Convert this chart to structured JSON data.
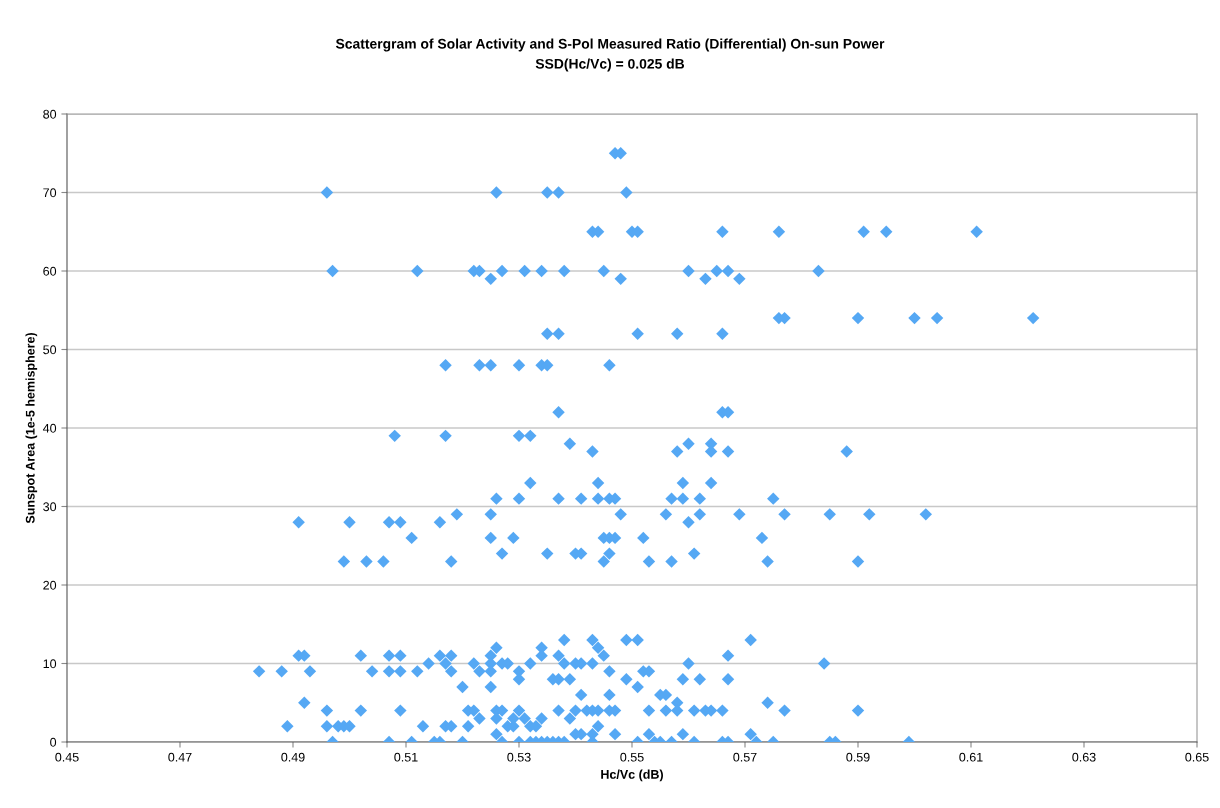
{
  "chart_data": {
    "type": "scatter",
    "title": "Scattergram of Solar Activity and S-Pol Measured Ratio (Differential) On-sun Power",
    "subtitle": "SSD(Hc/Vc) = 0.025 dB",
    "xlabel": "Hc/Vc (dB)",
    "ylabel": "Sunspot Area (1e-5 hemisphere)",
    "xlim": [
      0.45,
      0.65
    ],
    "xticks": [
      0.45,
      0.47,
      0.49,
      0.51,
      0.53,
      0.55,
      0.57,
      0.59,
      0.61,
      0.63,
      0.65
    ],
    "ylim": [
      0,
      80
    ],
    "yticks": [
      0,
      10,
      20,
      30,
      40,
      50,
      60,
      70,
      80
    ],
    "grid": "y",
    "marker": "diamond",
    "series": [
      {
        "color": "#55a8f4",
        "x": [
          0.547,
          0.548,
          0.496,
          0.526,
          0.535,
          0.537,
          0.549,
          0.543,
          0.544,
          0.55,
          0.551,
          0.566,
          0.576,
          0.591,
          0.595,
          0.611,
          0.497,
          0.512,
          0.522,
          0.523,
          0.527,
          0.531,
          0.534,
          0.538,
          0.545,
          0.56,
          0.565,
          0.567,
          0.583,
          0.525,
          0.548,
          0.563,
          0.569,
          0.576,
          0.577,
          0.59,
          0.6,
          0.604,
          0.621,
          0.535,
          0.537,
          0.551,
          0.558,
          0.566,
          0.517,
          0.523,
          0.525,
          0.53,
          0.534,
          0.535,
          0.546,
          0.537,
          0.566,
          0.567,
          0.508,
          0.517,
          0.53,
          0.532,
          0.539,
          0.56,
          0.564,
          0.543,
          0.558,
          0.564,
          0.567,
          0.588,
          0.532,
          0.544,
          0.559,
          0.564,
          0.526,
          0.53,
          0.537,
          0.541,
          0.544,
          0.546,
          0.547,
          0.557,
          0.559,
          0.562,
          0.575,
          0.519,
          0.525,
          0.548,
          0.556,
          0.562,
          0.569,
          0.577,
          0.585,
          0.592,
          0.602,
          0.491,
          0.5,
          0.507,
          0.509,
          0.516,
          0.56,
          0.511,
          0.525,
          0.529,
          0.545,
          0.546,
          0.547,
          0.552,
          0.573,
          0.527,
          0.535,
          0.54,
          0.541,
          0.546,
          0.561,
          0.499,
          0.503,
          0.506,
          0.518,
          0.545,
          0.553,
          0.557,
          0.574,
          0.59,
          0.538,
          0.543,
          0.549,
          0.551,
          0.571,
          0.526,
          0.534,
          0.544,
          0.491,
          0.492,
          0.502,
          0.507,
          0.509,
          0.516,
          0.518,
          0.525,
          0.534,
          0.537,
          0.545,
          0.567,
          0.514,
          0.517,
          0.522,
          0.525,
          0.527,
          0.528,
          0.532,
          0.538,
          0.54,
          0.541,
          0.543,
          0.56,
          0.584,
          0.484,
          0.488,
          0.493,
          0.504,
          0.507,
          0.509,
          0.512,
          0.518,
          0.523,
          0.525,
          0.53,
          0.546,
          0.552,
          0.553,
          0.53,
          0.536,
          0.537,
          0.539,
          0.549,
          0.559,
          0.562,
          0.567,
          0.52,
          0.525,
          0.551,
          0.541,
          0.546,
          0.555,
          0.556,
          0.492,
          0.558,
          0.574,
          0.496,
          0.502,
          0.509,
          0.521,
          0.522,
          0.526,
          0.527,
          0.53,
          0.537,
          0.54,
          0.542,
          0.543,
          0.544,
          0.546,
          0.547,
          0.553,
          0.556,
          0.558,
          0.561,
          0.563,
          0.564,
          0.566,
          0.577,
          0.59,
          0.523,
          0.526,
          0.529,
          0.531,
          0.534,
          0.539,
          0.489,
          0.496,
          0.498,
          0.499,
          0.5,
          0.513,
          0.517,
          0.518,
          0.521,
          0.528,
          0.529,
          0.532,
          0.533,
          0.544,
          0.526,
          0.54,
          0.541,
          0.543,
          0.547,
          0.553,
          0.559,
          0.571,
          0.497,
          0.507,
          0.511,
          0.515,
          0.516,
          0.52,
          0.527,
          0.53,
          0.532,
          0.533,
          0.534,
          0.535,
          0.536,
          0.537,
          0.538,
          0.543,
          0.551,
          0.554,
          0.555,
          0.557,
          0.561,
          0.566,
          0.567,
          0.572,
          0.575,
          0.585,
          0.586,
          0.599
        ],
        "values": [
          75,
          75,
          70,
          70,
          70,
          70,
          70,
          65,
          65,
          65,
          65,
          65,
          65,
          65,
          65,
          65,
          60,
          60,
          60,
          60,
          60,
          60,
          60,
          60,
          60,
          60,
          60,
          60,
          60,
          59,
          59,
          59,
          59,
          54,
          54,
          54,
          54,
          54,
          54,
          52,
          52,
          52,
          52,
          52,
          48,
          48,
          48,
          48,
          48,
          48,
          48,
          42,
          42,
          42,
          39,
          39,
          39,
          39,
          38,
          38,
          38,
          37,
          37,
          37,
          37,
          37,
          33,
          33,
          33,
          33,
          31,
          31,
          31,
          31,
          31,
          31,
          31,
          31,
          31,
          31,
          31,
          29,
          29,
          29,
          29,
          29,
          29,
          29,
          29,
          29,
          29,
          28,
          28,
          28,
          28,
          28,
          28,
          26,
          26,
          26,
          26,
          26,
          26,
          26,
          26,
          24,
          24,
          24,
          24,
          24,
          24,
          23,
          23,
          23,
          23,
          23,
          23,
          23,
          23,
          23,
          13,
          13,
          13,
          13,
          13,
          12,
          12,
          12,
          11,
          11,
          11,
          11,
          11,
          11,
          11,
          11,
          11,
          11,
          11,
          11,
          10,
          10,
          10,
          10,
          10,
          10,
          10,
          10,
          10,
          10,
          10,
          10,
          10,
          9,
          9,
          9,
          9,
          9,
          9,
          9,
          9,
          9,
          9,
          9,
          9,
          9,
          9,
          8,
          8,
          8,
          8,
          8,
          8,
          8,
          8,
          7,
          7,
          7,
          6,
          6,
          6,
          6,
          5,
          5,
          5,
          4,
          4,
          4,
          4,
          4,
          4,
          4,
          4,
          4,
          4,
          4,
          4,
          4,
          4,
          4,
          4,
          4,
          4,
          4,
          4,
          4,
          4,
          4,
          4,
          3,
          3,
          3,
          3,
          3,
          3,
          2,
          2,
          2,
          2,
          2,
          2,
          2,
          2,
          2,
          2,
          2,
          2,
          2,
          2,
          1,
          1,
          1,
          1,
          1,
          1,
          1,
          1,
          0,
          0,
          0,
          0,
          0,
          0,
          0,
          0,
          0,
          0,
          0,
          0,
          0,
          0,
          0,
          0,
          0,
          0,
          0,
          0,
          0,
          0,
          0,
          0,
          0,
          0,
          0,
          0
        ]
      }
    ]
  }
}
